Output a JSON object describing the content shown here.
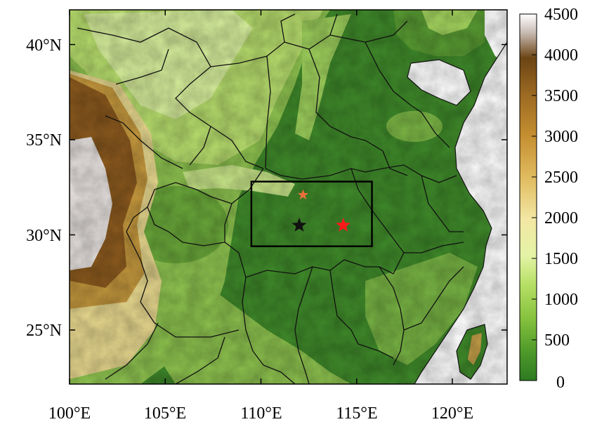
{
  "map": {
    "x_ticks": [
      "100°E",
      "105°E",
      "110°E",
      "115°E",
      "120°E"
    ],
    "y_ticks": [
      "25°N",
      "30°N",
      "35°N",
      "40°N"
    ],
    "markers": [
      {
        "name": "orange-star",
        "lon": 112.2,
        "lat": 32.1,
        "color": "#e8703a"
      },
      {
        "name": "black-star",
        "lon": 112.0,
        "lat": 30.5,
        "color": "#111111"
      },
      {
        "name": "red-star",
        "lon": 114.3,
        "lat": 30.5,
        "color": "#ff1a1a"
      }
    ],
    "study_box": {
      "lon_min": 109.5,
      "lon_max": 115.8,
      "lat_min": 29.4,
      "lat_max": 32.8
    }
  },
  "colorbar": {
    "tick_labels": [
      "4500",
      "4000",
      "3500",
      "3000",
      "2500",
      "2000",
      "1500",
      "1000",
      "500",
      "0"
    ],
    "min": 0,
    "max": 4500,
    "colors": [
      "#2d7a22",
      "#4f9a2a",
      "#7cb93a",
      "#a8d55a",
      "#d8eda0",
      "#f2f0b4",
      "#e2c26a",
      "#c99a38",
      "#a66e20",
      "#7a4a14",
      "#f4f2f2"
    ]
  }
}
